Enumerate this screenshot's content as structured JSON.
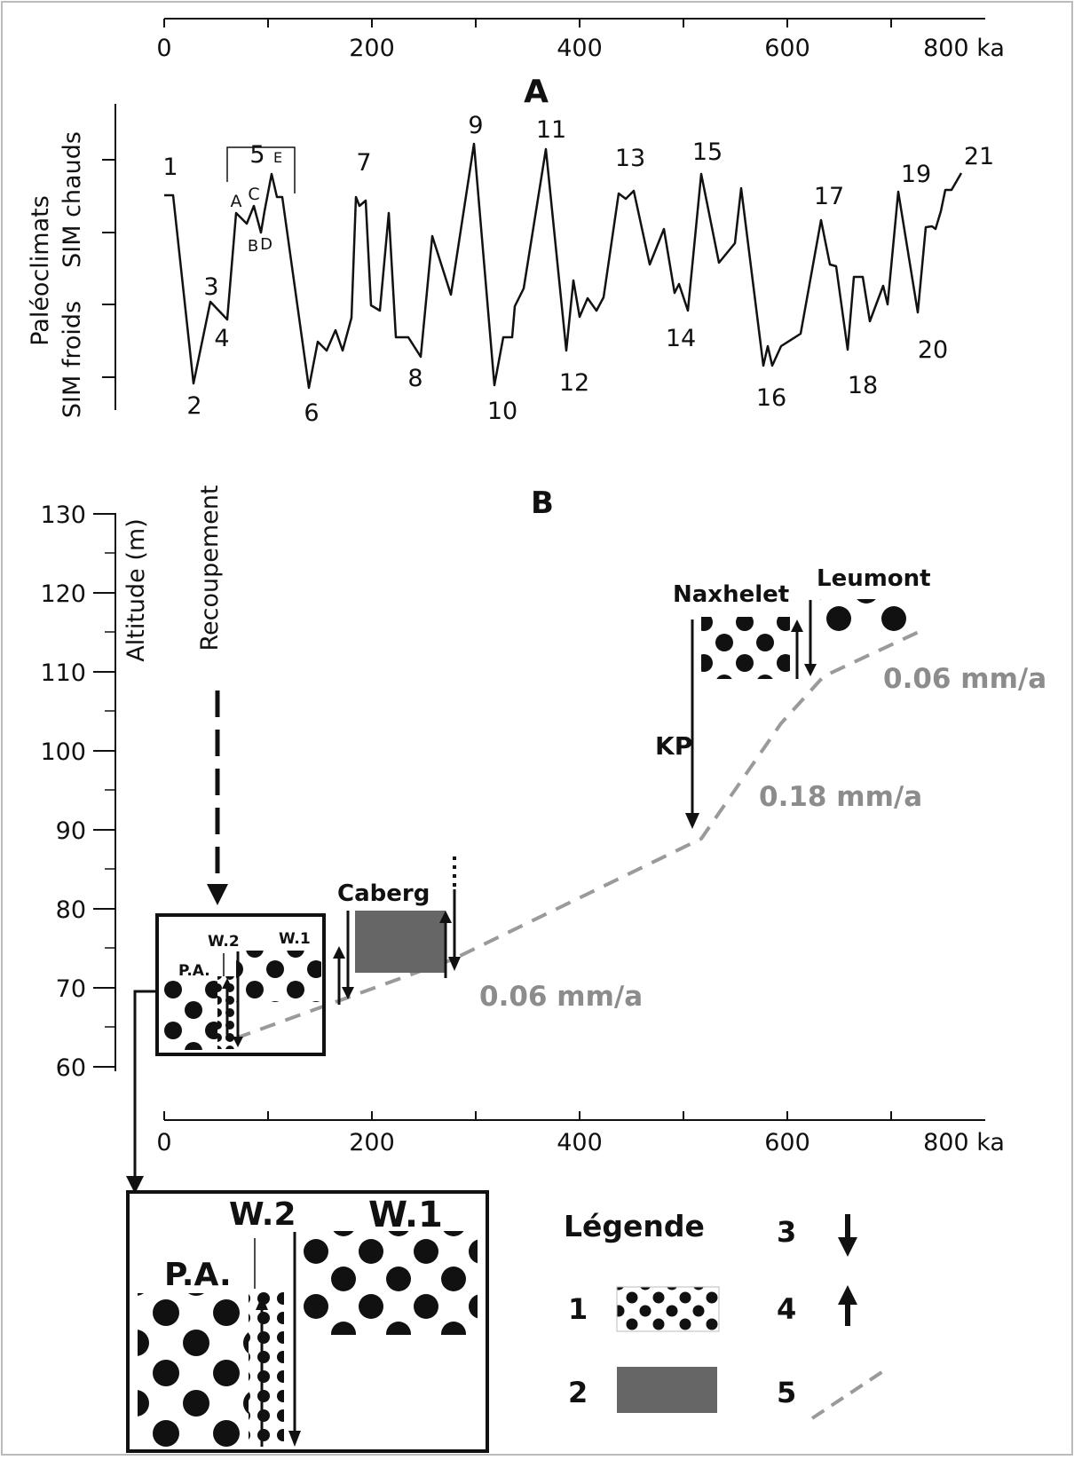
{
  "panel_a": {
    "letter": "A",
    "axis_ticks": [
      "0",
      "200",
      "400",
      "600",
      "800 ka"
    ],
    "ylabel": "Paléoclimats",
    "ylabel_warm": "SIM chauds",
    "ylabel_cold": "SIM froids",
    "stages": [
      {
        "label": "1",
        "age": 5
      },
      {
        "label": "2",
        "age": 30
      },
      {
        "label": "3",
        "age": 45
      },
      {
        "label": "4",
        "age": 55
      },
      {
        "label": "5",
        "age": 95
      },
      {
        "label": "6",
        "age": 140
      },
      {
        "label": "7",
        "age": 190
      },
      {
        "label": "8",
        "age": 245
      },
      {
        "label": "9",
        "age": 305
      },
      {
        "label": "10",
        "age": 330
      },
      {
        "label": "11",
        "age": 375
      },
      {
        "label": "12",
        "age": 405
      },
      {
        "label": "13",
        "age": 460
      },
      {
        "label": "14",
        "age": 510
      },
      {
        "label": "15",
        "age": 540
      },
      {
        "label": "16",
        "age": 595
      },
      {
        "label": "17",
        "age": 660
      },
      {
        "label": "18",
        "age": 700
      },
      {
        "label": "19",
        "age": 760
      },
      {
        "label": "20",
        "age": 775
      },
      {
        "label": "21",
        "age": 810
      }
    ],
    "substages": [
      "A",
      "C",
      "E",
      "B",
      "D"
    ]
  },
  "panel_b": {
    "letter": "B",
    "ylabel": "Altitude (m)",
    "recoupement_label": "Recoupement",
    "y_ticks": [
      "130",
      "120",
      "110",
      "100",
      "90",
      "80",
      "70",
      "60"
    ],
    "x_ticks": [
      "0",
      "200",
      "400",
      "600",
      "800 ka"
    ],
    "terraces": {
      "pa": "P.A.",
      "w2": "W.2",
      "w1": "W.1",
      "caberg": "Caberg",
      "naxhelet": "Naxhelet",
      "leumont": "Leumont"
    },
    "kp_label": "KP",
    "rates": [
      "0.06 mm/a",
      "0.18 mm/a",
      "0.06 mm/a"
    ]
  },
  "inset": {
    "pa": "P.A.",
    "w2": "W.2",
    "w1": "W.1"
  },
  "legend": {
    "title": "Légende",
    "items": [
      {
        "num": "1",
        "symbol": "gravel-pattern"
      },
      {
        "num": "2",
        "symbol": "gray-block"
      },
      {
        "num": "3",
        "symbol": "down-arrow"
      },
      {
        "num": "4",
        "symbol": "up-arrow"
      },
      {
        "num": "5",
        "symbol": "dashed-line"
      }
    ]
  },
  "colors": {
    "line": "#111111",
    "gravel_fill": "#111111",
    "caberg_fill": "#666666",
    "rate_line": "#9a9a9a",
    "rate_text": "#8c8c8c"
  }
}
